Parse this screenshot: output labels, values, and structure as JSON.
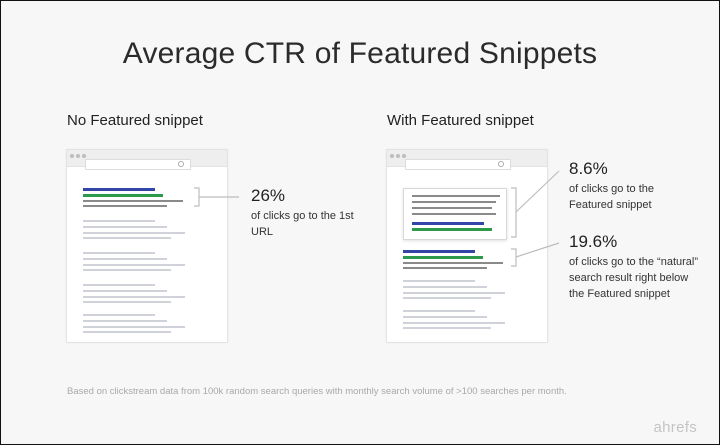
{
  "title": "Average CTR of Featured Snippets",
  "left_panel": {
    "label": "No Featured snippet",
    "stat": "26%",
    "description": "of clicks go to the 1st URL"
  },
  "right_panel": {
    "label": "With Featured snippet",
    "snippet_stat": "8.6%",
    "snippet_description": "of clicks go to the Featured snippet",
    "natural_stat": "19.6%",
    "natural_description": "of clicks go to the “natural” search result right below the Featured snippet"
  },
  "footnote": "Based on clickstream data from 100k random search queries with monthly search volume of >100 searches per month.",
  "brand": "ahrefs",
  "colors": {
    "link_blue": "#3346a8",
    "url_green": "#2b9a4a",
    "text_gray": "#cfd3d9",
    "callout_gray": "#8a8a8a"
  }
}
